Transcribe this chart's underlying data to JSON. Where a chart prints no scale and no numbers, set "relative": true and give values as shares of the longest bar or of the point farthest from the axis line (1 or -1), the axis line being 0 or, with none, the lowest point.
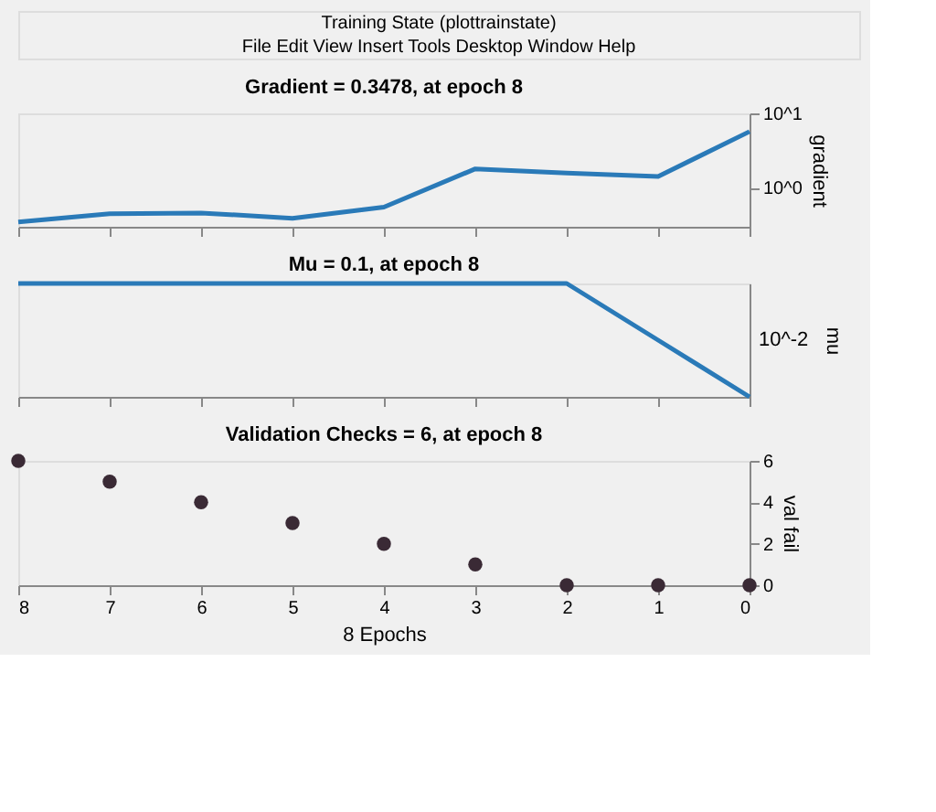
{
  "chart_data": [
    {
      "type": "line",
      "title": "Gradient = 0.3478, at epoch 8",
      "ylabel": "gradient",
      "annotations": [
        "Training State (plottrainstate)",
        "File Edit View Insert Tools Desktop Window Help"
      ],
      "x": [
        8,
        7,
        6,
        5,
        4,
        3,
        2,
        1,
        0
      ],
      "series": [
        {
          "color": "#2a7ab8",
          "values": [
            0.3478,
            0.45,
            0.46,
            0.39,
            0.55,
            1.8,
            1.58,
            1.42,
            5.7
          ]
        }
      ],
      "log": "y",
      "xlim": [
        8,
        0
      ],
      "xticks": [
        8,
        7,
        6,
        5,
        4,
        3,
        2,
        1,
        0
      ],
      "ylim": [
        0.3,
        10
      ],
      "yticks": [
        {
          "value": 1,
          "label": "10^0"
        },
        {
          "value": 10,
          "label": "10^1"
        }
      ],
      "tick_labels": "y",
      "grid": false,
      "line_style": "solid",
      "marker": "none"
    },
    {
      "type": "line",
      "title": "Mu = 0.1, at epoch 8",
      "ylabel": "mu",
      "x": [
        8,
        7,
        6,
        5,
        4,
        3,
        2,
        1,
        0
      ],
      "series": [
        {
          "color": "#2a7ab8",
          "values": [
            1,
            1,
            1,
            1,
            1,
            1,
            1,
            0.5,
            0
          ]
        }
      ],
      "relative": true,
      "annotations": [
        "10^-2"
      ],
      "xlim": [
        8,
        0
      ],
      "xticks": [
        8,
        7,
        6,
        5,
        4,
        3,
        2,
        1,
        0
      ],
      "tick_labels": "y",
      "grid": false,
      "line_style": "solid",
      "marker": "none"
    },
    {
      "type": "scatter",
      "title": "Validation Checks = 6, at epoch 8",
      "xlabel": "8 Epochs",
      "ylabel": "val fail",
      "x": [
        8,
        7,
        6,
        5,
        4,
        3,
        2,
        1,
        0
      ],
      "series": [
        {
          "color": "#3a2a35",
          "values": [
            6,
            5,
            4,
            3,
            2,
            1,
            0,
            0,
            0
          ]
        }
      ],
      "xlim": [
        8,
        0
      ],
      "xticks": [
        8,
        7,
        6,
        5,
        4,
        3,
        2,
        1,
        0
      ],
      "ylim": [
        0,
        6
      ],
      "yticks": [
        0,
        2,
        4,
        6
      ],
      "grid": false,
      "marker": "circle"
    }
  ]
}
